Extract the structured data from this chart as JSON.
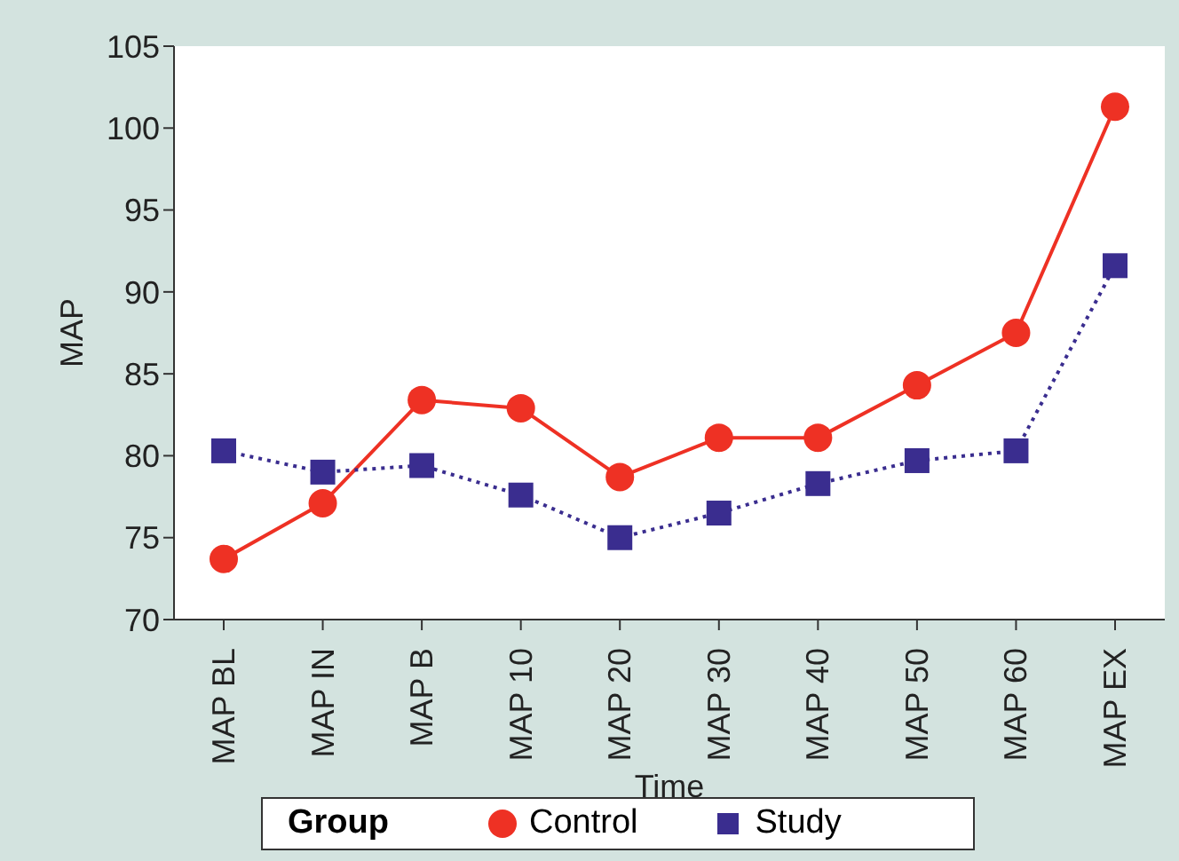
{
  "chart_data": {
    "type": "line",
    "xlabel": "Time",
    "ylabel": "MAP",
    "legend_title": "Group",
    "legend": "bottom",
    "grid": false,
    "categories": [
      "MAP BL",
      "MAP IN",
      "MAP B",
      "MAP 10",
      "MAP 20",
      "MAP 30",
      "MAP 40",
      "MAP 50",
      "MAP 60",
      "MAP EX"
    ],
    "ylim": [
      70,
      105
    ],
    "yticks": [
      70,
      75,
      80,
      85,
      90,
      95,
      100,
      105
    ],
    "series": [
      {
        "name": "Control",
        "color": "#ee3124",
        "marker": "circle",
        "line_style": "solid",
        "values": [
          73.7,
          77.1,
          83.4,
          82.9,
          78.7,
          81.1,
          81.1,
          84.3,
          87.5,
          101.3
        ]
      },
      {
        "name": "Study",
        "color": "#3a2d8f",
        "marker": "square",
        "line_style": "dotted",
        "values": [
          80.3,
          79.0,
          79.4,
          77.6,
          75.0,
          76.5,
          78.3,
          79.7,
          80.3,
          91.6
        ]
      }
    ]
  }
}
